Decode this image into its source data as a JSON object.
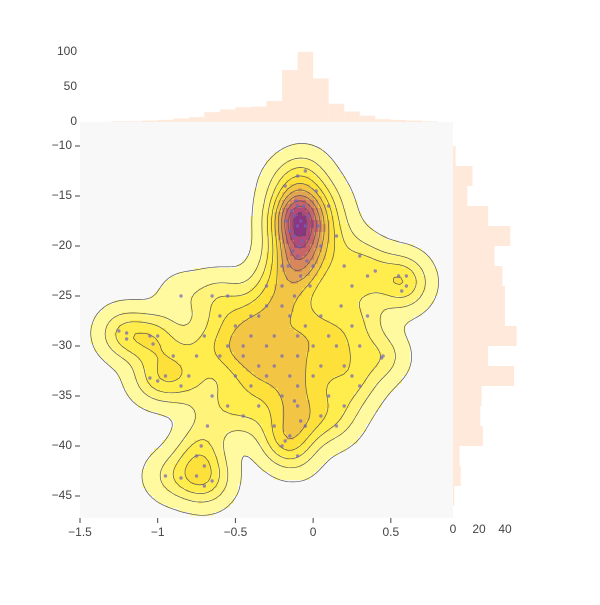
{
  "chart_data": {
    "type": "density_contour",
    "x": [
      -0.1,
      -0.12,
      -0.08,
      -0.1,
      -0.15,
      -0.05,
      -0.12,
      -0.09,
      -0.14,
      -0.06,
      -0.11,
      -0.07,
      -0.13,
      -0.03,
      -0.17,
      -0.1,
      -0.04,
      -0.16,
      -0.08,
      -0.02,
      -0.12,
      0.0,
      -0.2,
      0.05,
      0.03,
      -0.18,
      -0.1,
      0.02,
      -0.05,
      0.1,
      0.15,
      0.2,
      0.18,
      0.25,
      0.3,
      0.35,
      0.4,
      0.55,
      0.6,
      0.57,
      0.6,
      0.45,
      0.44,
      -0.3,
      -0.4,
      -0.5,
      -0.55,
      -0.45,
      -0.35,
      -0.25,
      -0.15,
      -0.05,
      0.05,
      0.1,
      0.15,
      0.2,
      0.25,
      0.3,
      0.1,
      0.0,
      -0.1,
      -0.2,
      -0.3,
      -0.4,
      -0.5,
      -0.6,
      -0.7,
      -0.75,
      -0.8,
      -0.85,
      -0.65,
      -0.55,
      -0.45,
      -0.35,
      -0.25,
      -0.15,
      -0.05,
      0.05,
      0.15,
      0.2,
      -0.1,
      -0.08,
      -0.12,
      -0.1,
      -0.2,
      -0.3,
      -0.4,
      -0.35,
      -0.2,
      -0.1,
      0.0,
      0.05,
      -0.15,
      -0.25,
      -0.45,
      -0.6,
      -0.65,
      -0.55,
      -0.3,
      -0.2,
      0.25,
      0.3,
      0.35,
      -0.18,
      -0.2,
      -0.1,
      -1.25,
      -1.2,
      -1.2,
      -1.05,
      -1.0,
      -1.03,
      -1.0,
      -1.05,
      -0.95,
      -0.9,
      -0.85,
      -0.95,
      -0.85,
      -0.75,
      -0.7,
      -0.72,
      -0.68,
      -0.7,
      -0.65,
      -0.75
    ],
    "y": [
      -16,
      -17,
      -17.5,
      -18,
      -18.5,
      -18,
      -19,
      -20,
      -16.5,
      -16,
      -15.5,
      -19.5,
      -20.5,
      -17,
      -17.5,
      -21,
      -21.5,
      -22,
      -23,
      -24,
      -25,
      -22,
      -24,
      -20,
      -18,
      -14,
      -13,
      -14.5,
      -12.5,
      -16,
      -19,
      -22,
      -26,
      -24,
      -21,
      -23,
      -22.5,
      -23,
      -24,
      -24.5,
      -23,
      -31,
      -31.2,
      -26,
      -27,
      -28,
      -30,
      -31,
      -32,
      -29,
      -27,
      -28,
      -27,
      -29,
      -30,
      -32,
      -33,
      -34,
      -35,
      -33,
      -34,
      -35,
      -33,
      -34,
      -33,
      -31,
      -29,
      -31,
      -33,
      -34,
      -35,
      -36,
      -37,
      -36,
      -38,
      -39,
      -38,
      -37,
      -38,
      -36,
      -36,
      -37.5,
      -35.5,
      -31,
      -31,
      -30,
      -29,
      -27,
      -26,
      -29,
      -30,
      -32,
      -33,
      -32,
      -30,
      -27,
      -25,
      -25,
      -24,
      -22,
      -28,
      -30,
      -27,
      -39.5,
      -40,
      -41,
      -28.5,
      -28.7,
      -29.3,
      -29,
      -29,
      -29.8,
      -33.5,
      -33.2,
      -33,
      -31,
      -25,
      -43,
      -43.2,
      -43,
      -42,
      -40,
      -38,
      -44,
      -43.5,
      -41
    ],
    "marker_color": "#6f63bd",
    "colorscale": [
      "#fffaa0",
      "#fff37a",
      "#ffec4d",
      "#fde03a",
      "#f2c545",
      "#e4a552",
      "#d8875c",
      "#c96468",
      "#b04a78",
      "#8c3583"
    ],
    "xlim": [
      -1.5,
      0.9
    ],
    "ylim": [
      -47.2,
      -7.6
    ],
    "xticks": [
      {
        "value": -1.5,
        "label": "−1.5"
      },
      {
        "value": -1,
        "label": "−1"
      },
      {
        "value": -0.5,
        "label": "−0.5"
      },
      0,
      0.5
    ],
    "yticks": [
      {
        "value": -45,
        "label": "−45"
      },
      {
        "value": -40,
        "label": "−40"
      },
      {
        "value": -35,
        "label": "−35"
      },
      {
        "value": -30,
        "label": "−30"
      },
      {
        "value": -25,
        "label": "−25"
      },
      {
        "value": -20,
        "label": "−20"
      },
      {
        "value": -15,
        "label": "−15"
      },
      {
        "value": -10,
        "label": "−10"
      }
    ],
    "histogram_x": {
      "color": "#ffe9da",
      "bins": [
        -1.3,
        -1.2,
        -1.1,
        -1.0,
        -0.9,
        -0.8,
        -0.7,
        -0.6,
        -0.5,
        -0.4,
        -0.3,
        -0.2,
        -0.1,
        0,
        0.1,
        0.2,
        0.3,
        0.4,
        0.5,
        0.6,
        0.7,
        0.8
      ],
      "counts": [
        1,
        1,
        2,
        3,
        5,
        7,
        14,
        18,
        21,
        22,
        30,
        74,
        100,
        62,
        26,
        15,
        9,
        4,
        3,
        2,
        1
      ],
      "ylim": [
        0,
        107
      ],
      "yticks": [
        0,
        50,
        100
      ]
    },
    "histogram_y": {
      "color": "#ffe9da",
      "bins": [
        -46,
        -44,
        -42,
        -40,
        -38,
        -36,
        -34,
        -32,
        -30,
        -28,
        -26,
        -24,
        -22,
        -20,
        -18,
        -16,
        -14,
        -12,
        -10
      ],
      "counts": [
        1,
        6,
        5,
        23,
        21,
        22,
        47,
        27,
        49,
        40,
        40,
        38,
        32,
        44,
        27,
        11,
        15,
        2
      ],
      "xlim": [
        0,
        50
      ],
      "xticks": [
        0,
        20,
        40
      ]
    }
  }
}
